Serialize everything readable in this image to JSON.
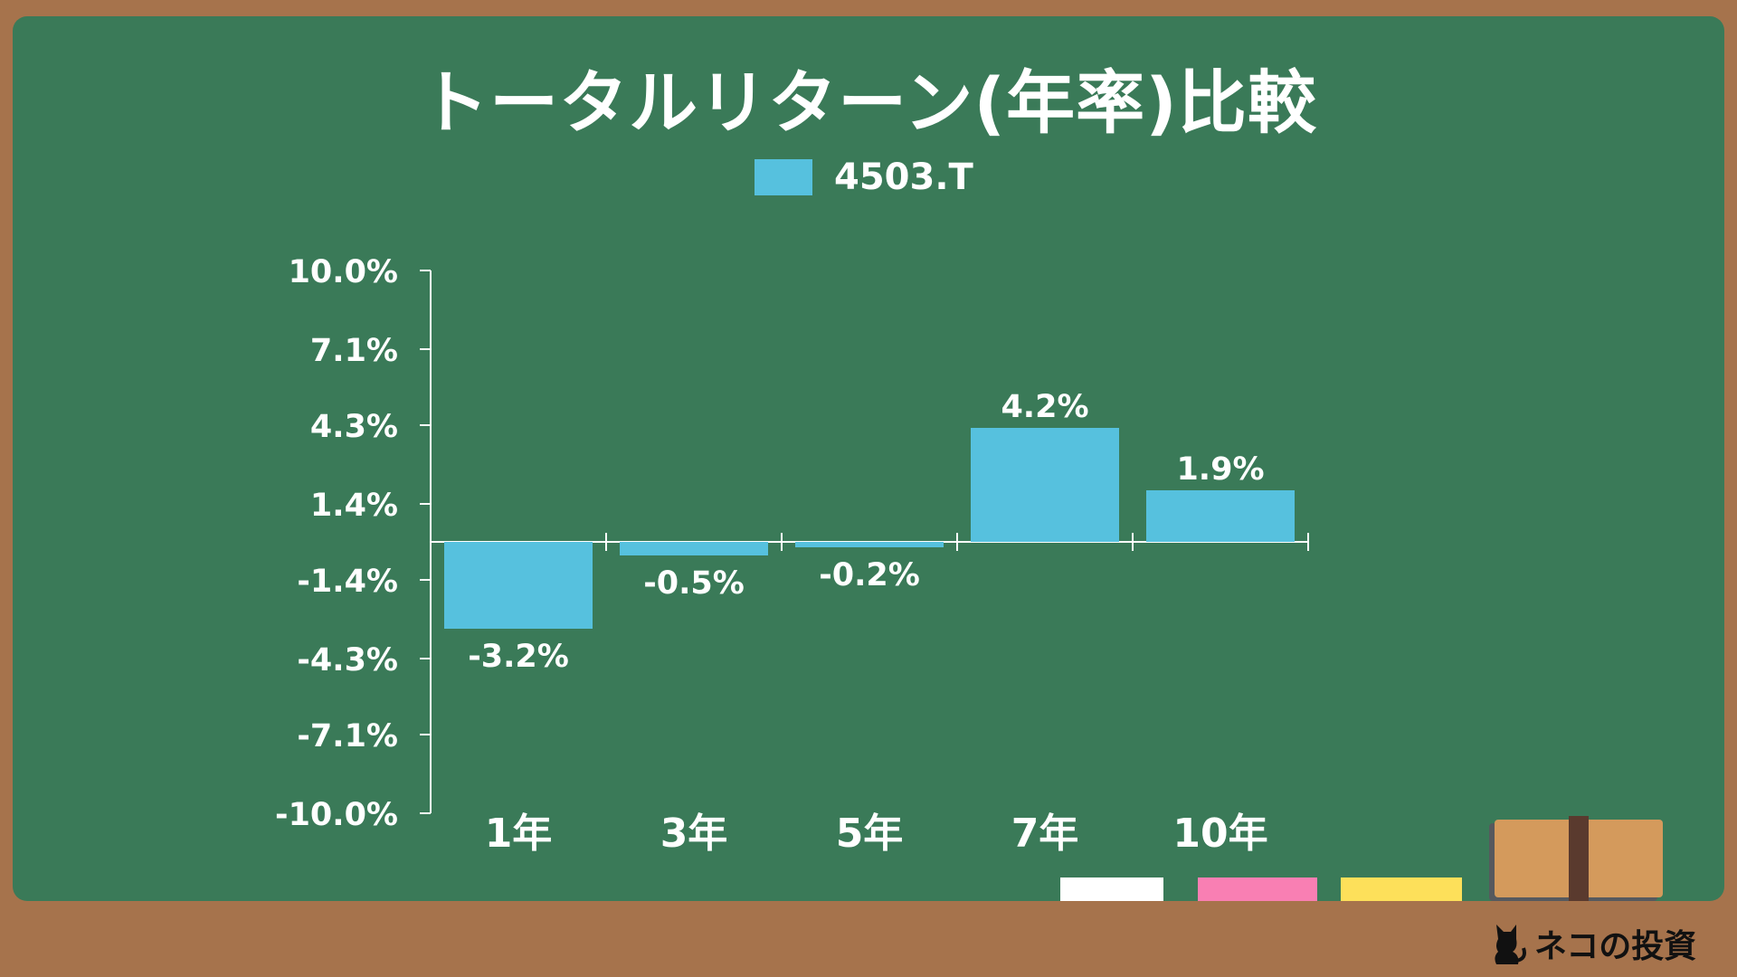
{
  "colors": {
    "board": "#3a7a58",
    "frame": "#a6734c",
    "bar": "#56c1de",
    "text": "#ffffff"
  },
  "brand": {
    "name": "ネコの投資",
    "icon": "black-cat-icon"
  },
  "chart_data": {
    "type": "bar",
    "title": "トータルリターン(年率)比較",
    "categories": [
      "1年",
      "3年",
      "5年",
      "7年",
      "10年"
    ],
    "series": [
      {
        "name": "4503.T",
        "values": [
          -3.2,
          -0.5,
          -0.2,
          4.2,
          1.9
        ],
        "labels": [
          "-3.2%",
          "-0.5%",
          "-0.2%",
          "4.2%",
          "1.9%"
        ]
      }
    ],
    "ylim": [
      -10.0,
      10.0
    ],
    "yticks": [
      10.0,
      7.1,
      4.3,
      1.4,
      -1.4,
      -4.3,
      -7.1,
      -10.0
    ],
    "ytick_labels": [
      "10.0%",
      "7.1%",
      "4.3%",
      "1.4%",
      "-1.4%",
      "-4.3%",
      "-7.1%",
      "-10.0%"
    ],
    "legend": "top-center",
    "grid": false,
    "xlabel": "",
    "ylabel": ""
  }
}
